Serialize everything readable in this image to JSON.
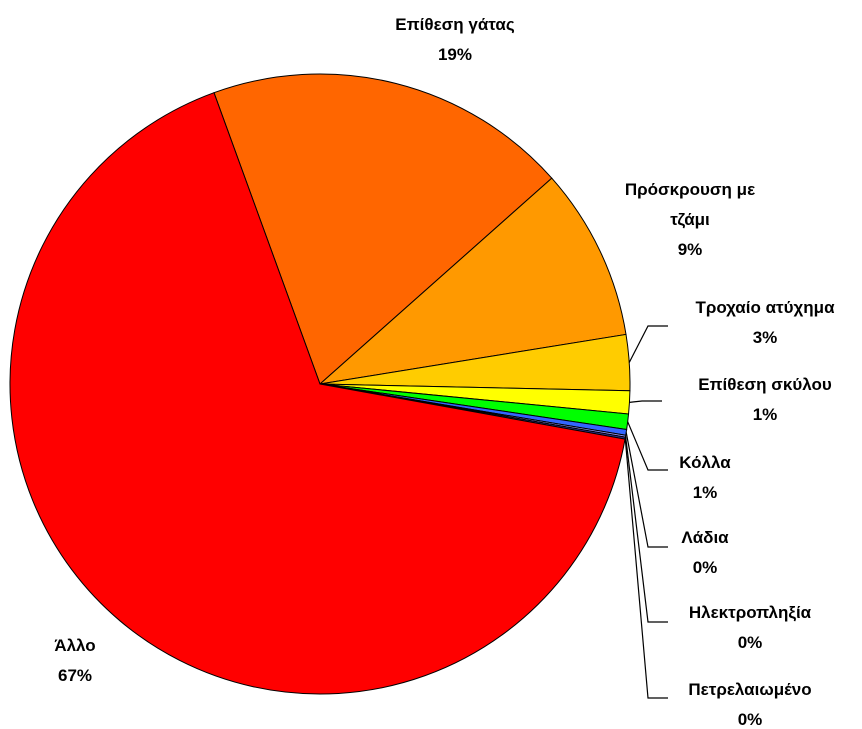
{
  "chart_data": {
    "type": "pie",
    "categories": [
      "Επίθεση γάτας",
      "Πρόσκρουση με τζάμι",
      "Τροχαίο ατύχημα",
      "Επίθεση σκύλου",
      "Κόλλα",
      "Λάδια",
      "Ηλεκτροπληξία",
      "Πετρελαιωμένο",
      "Άλλο"
    ],
    "values": [
      19.0,
      9.0,
      2.9,
      1.2,
      0.8,
      0.3,
      0.1,
      0.1,
      66.6
    ],
    "value_labels": [
      "19%",
      "9%",
      "3%",
      "1%",
      "1%",
      "0%",
      "0%",
      "0%",
      "67%"
    ],
    "colors": [
      "#ff6600",
      "#ff9900",
      "#ffcc00",
      "#ffff00",
      "#00ff00",
      "#3366ff",
      "#9999ff",
      "#333399",
      "#ff0000"
    ]
  }
}
